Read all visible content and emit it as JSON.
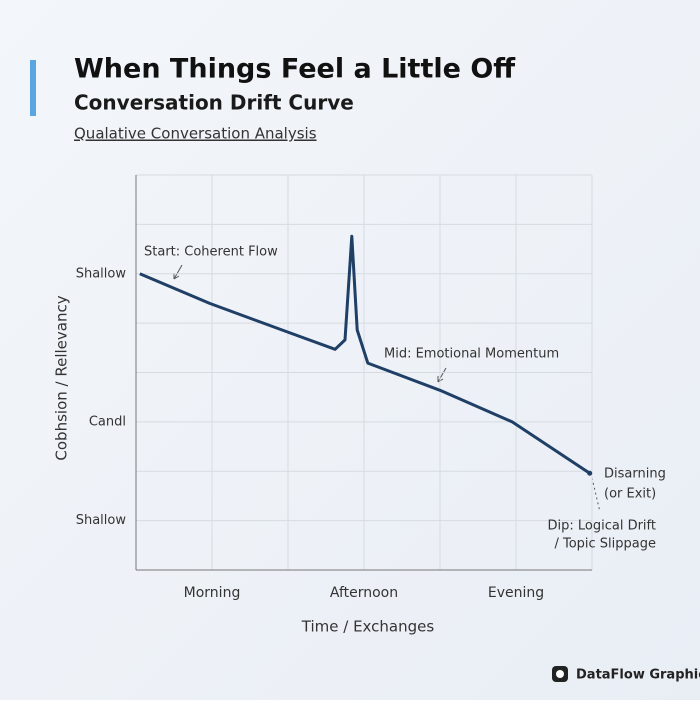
{
  "chart_data": {
    "type": "line",
    "title": "When Things Feel a Little Off",
    "subtitle": "Conversation Drift Curve",
    "caption": "Qualative Conversation Analysis",
    "x_label": "Time / Exchanges",
    "y_label": "Cobhsion / Rellevancy",
    "xlim": [
      0,
      6
    ],
    "ylim": [
      0,
      8
    ],
    "xticks": [
      {
        "value": 1,
        "label": "Morning"
      },
      {
        "value": 3,
        "label": "Afternoon"
      },
      {
        "value": 5,
        "label": "Evening"
      }
    ],
    "yticks": [
      {
        "value": 6,
        "label": "Shallow"
      },
      {
        "value": 3,
        "label": "Candl"
      },
      {
        "value": 1,
        "label": "Shallow"
      }
    ],
    "xgrid": [
      0,
      1,
      2,
      3,
      4,
      5,
      6
    ],
    "ygrid": [
      0,
      1,
      2,
      3,
      4,
      5,
      6,
      7,
      8
    ],
    "grid": true,
    "series": [
      {
        "color": "#1f3f66",
        "x": [
          0.05,
          0.97,
          2.03,
          2.62,
          2.75,
          2.84,
          2.91,
          3.05,
          4.0,
          4.95,
          5.97
        ],
        "values": [
          6.0,
          5.4,
          4.8,
          4.47,
          4.66,
          6.76,
          4.86,
          4.19,
          3.64,
          3.0,
          1.96
        ]
      }
    ],
    "annotations": [
      "Start: Coherent Flow",
      "Mid: Emotional Momentum",
      "Disarning",
      "(or Exit)",
      "Dip: Logical Drift",
      "/ Topic Slippage"
    ],
    "brand": "DataFlow Graphics"
  }
}
